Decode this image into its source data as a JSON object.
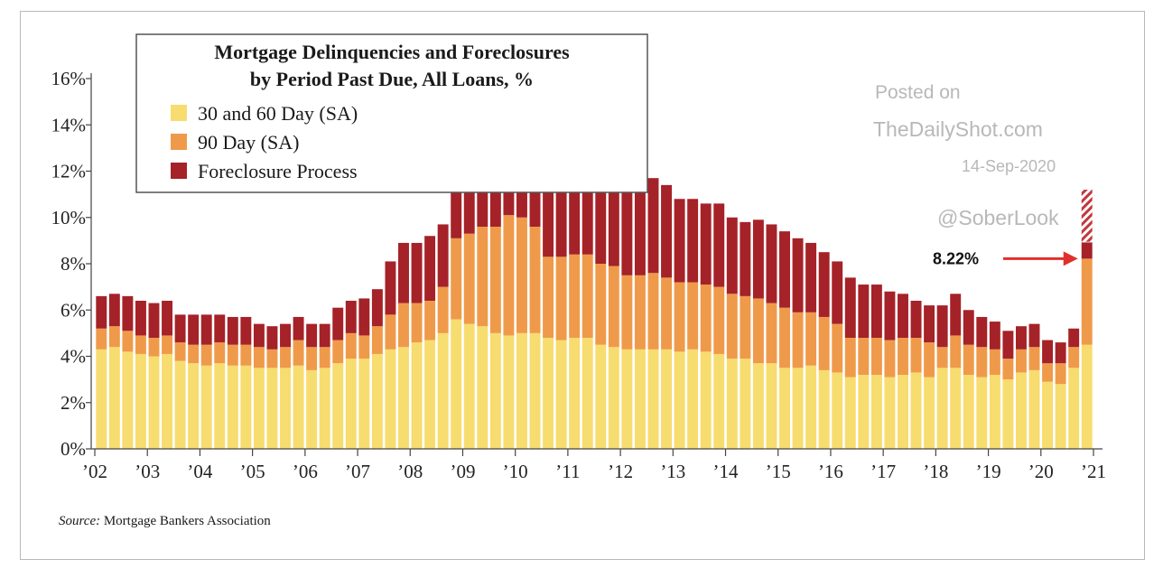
{
  "chart_data": {
    "type": "bar",
    "stacked": true,
    "title": "Mortgage Delinquencies and Foreclosures",
    "subtitle": "by Period Past Due, All Loans, %",
    "ylim": [
      0,
      16
    ],
    "xlim": [
      2002,
      2021
    ],
    "y_ticks": [
      "0%",
      "2%",
      "4%",
      "6%",
      "8%",
      "10%",
      "12%",
      "14%",
      "16%"
    ],
    "x_ticks": [
      "’02",
      "’03",
      "’04",
      "’05",
      "’06",
      "’07",
      "’08",
      "’09",
      "’10",
      "’11",
      "’12",
      "’13",
      "’14",
      "’15",
      "’16",
      "’17",
      "’18",
      "’19",
      "’20",
      "’21"
    ],
    "legend_position": "top-left",
    "start_year": 2002,
    "periods_per_year": 4,
    "series": [
      {
        "name": "30 and 60 Day (SA)",
        "color": "#f7dc6f",
        "values": [
          4.3,
          4.4,
          4.2,
          4.1,
          4.0,
          4.1,
          3.8,
          3.7,
          3.6,
          3.7,
          3.6,
          3.6,
          3.5,
          3.5,
          3.5,
          3.6,
          3.4,
          3.5,
          3.7,
          3.9,
          3.9,
          4.1,
          4.3,
          4.4,
          4.6,
          4.7,
          5.0,
          5.6,
          5.4,
          5.3,
          5.0,
          4.9,
          5.0,
          5.0,
          4.8,
          4.7,
          4.8,
          4.8,
          4.5,
          4.4,
          4.3,
          4.3,
          4.3,
          4.3,
          4.2,
          4.3,
          4.2,
          4.1,
          3.9,
          3.9,
          3.7,
          3.7,
          3.5,
          3.5,
          3.6,
          3.4,
          3.3,
          3.1,
          3.2,
          3.2,
          3.1,
          3.2,
          3.3,
          3.1,
          3.5,
          3.5,
          3.2,
          3.1,
          3.2,
          3.0,
          3.3,
          3.4,
          2.9,
          2.8,
          3.5,
          4.5
        ]
      },
      {
        "name": "90 Day (SA)",
        "color": "#ef9a4a",
        "values": [
          0.9,
          0.9,
          0.9,
          0.8,
          0.8,
          0.8,
          0.8,
          0.8,
          0.9,
          0.9,
          0.9,
          0.9,
          0.9,
          0.8,
          0.9,
          1.1,
          1.0,
          0.9,
          1.0,
          1.1,
          1.0,
          1.2,
          1.5,
          1.9,
          1.7,
          1.7,
          2.0,
          3.5,
          3.9,
          4.3,
          4.6,
          5.2,
          5.0,
          4.6,
          3.5,
          3.6,
          3.6,
          3.6,
          3.5,
          3.5,
          3.2,
          3.2,
          3.3,
          3.1,
          3.0,
          2.9,
          2.9,
          2.9,
          2.8,
          2.7,
          2.8,
          2.6,
          2.6,
          2.4,
          2.3,
          2.3,
          2.1,
          1.7,
          1.6,
          1.6,
          1.6,
          1.6,
          1.5,
          1.5,
          0.9,
          1.4,
          1.3,
          1.3,
          1.1,
          0.9,
          1.0,
          1.0,
          0.8,
          0.9,
          0.9,
          3.72
        ]
      },
      {
        "name": "Foreclosure Process",
        "color": "#a52228",
        "values": [
          1.4,
          1.4,
          1.5,
          1.5,
          1.5,
          1.5,
          1.2,
          1.3,
          1.3,
          1.2,
          1.2,
          1.2,
          1.0,
          1.0,
          1.0,
          1.0,
          1.0,
          1.0,
          1.4,
          1.4,
          1.6,
          1.6,
          2.3,
          2.6,
          2.6,
          2.8,
          2.7,
          3.1,
          4.0,
          4.4,
          4.4,
          4.7,
          4.5,
          4.4,
          4.8,
          4.5,
          4.5,
          4.5,
          4.4,
          4.1,
          4.2,
          4.2,
          4.1,
          4.0,
          3.6,
          3.6,
          3.5,
          3.6,
          3.3,
          3.2,
          3.4,
          3.4,
          3.3,
          3.2,
          3.0,
          2.8,
          2.7,
          2.6,
          2.3,
          2.3,
          2.1,
          1.9,
          1.6,
          1.6,
          1.8,
          1.8,
          1.5,
          1.3,
          1.2,
          1.2,
          1.0,
          1.0,
          1.0,
          0.9,
          0.8,
          0.7
        ]
      }
    ],
    "projection": {
      "from": 8.95,
      "to": 11.2,
      "color": "#c0393f"
    },
    "annotation": {
      "label": "8.22%",
      "value": 8.22
    },
    "source_label": "Source:",
    "source_text": " Mortgage Bankers Association",
    "watermark": {
      "line1": "Posted on",
      "line2": "TheDailyShot.com",
      "date": "14-Sep-2020",
      "handle": "@SoberLook"
    }
  }
}
